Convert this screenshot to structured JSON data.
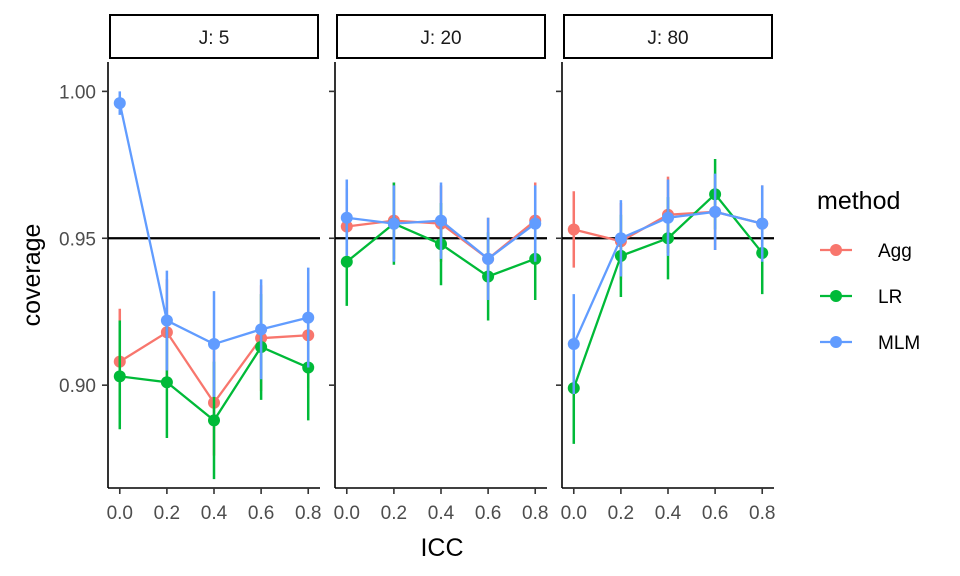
{
  "chart_data": {
    "type": "line",
    "xlabel": "ICC",
    "ylabel": "coverage",
    "ylim": [
      0.865,
      1.01
    ],
    "xlim": [
      -0.05,
      0.85
    ],
    "yticks": [
      0.9,
      0.95,
      1.0
    ],
    "ytick_labels": [
      "0.90",
      "0.95",
      "1.00"
    ],
    "xticks": [
      0.0,
      0.2,
      0.4,
      0.6,
      0.8
    ],
    "xtick_labels": [
      "0.0",
      "0.2",
      "0.4",
      "0.6",
      "0.8"
    ],
    "hline": 0.95,
    "legend": {
      "title": "method",
      "position": "right",
      "items": [
        {
          "label": "Agg",
          "color": "#F8766D"
        },
        {
          "label": "LR",
          "color": "#00BA38"
        },
        {
          "label": "MLM",
          "color": "#619CFF"
        }
      ]
    },
    "panels": [
      {
        "label": "J: 5",
        "series": [
          {
            "name": "Agg",
            "color": "#F8766D",
            "x": [
              0.0,
              0.2,
              0.4,
              0.6,
              0.8
            ],
            "y": [
              0.908,
              0.918,
              0.894,
              0.916,
              0.917
            ],
            "lo": [
              0.89,
              0.9,
              0.876,
              0.898,
              0.899
            ],
            "hi": [
              0.926,
              0.936,
              0.912,
              0.934,
              0.935
            ]
          },
          {
            "name": "LR",
            "color": "#00BA38",
            "x": [
              0.0,
              0.2,
              0.4,
              0.6,
              0.8
            ],
            "y": [
              0.903,
              0.901,
              0.888,
              0.913,
              0.906
            ],
            "lo": [
              0.885,
              0.882,
              0.868,
              0.895,
              0.888
            ],
            "hi": [
              0.922,
              0.92,
              0.908,
              0.931,
              0.924
            ]
          },
          {
            "name": "MLM",
            "color": "#619CFF",
            "x": [
              0.0,
              0.2,
              0.4,
              0.6,
              0.8
            ],
            "y": [
              0.996,
              0.922,
              0.914,
              0.919,
              0.923
            ],
            "lo": [
              0.992,
              0.905,
              0.896,
              0.902,
              0.906
            ],
            "hi": [
              1.0,
              0.939,
              0.932,
              0.936,
              0.94
            ]
          }
        ]
      },
      {
        "label": "J: 20",
        "series": [
          {
            "name": "Agg",
            "color": "#F8766D",
            "x": [
              0.0,
              0.2,
              0.4,
              0.6,
              0.8
            ],
            "y": [
              0.954,
              0.956,
              0.955,
              0.943,
              0.956
            ],
            "lo": [
              0.941,
              0.943,
              0.942,
              0.929,
              0.943
            ],
            "hi": [
              0.967,
              0.969,
              0.968,
              0.957,
              0.969
            ]
          },
          {
            "name": "LR",
            "color": "#00BA38",
            "x": [
              0.0,
              0.2,
              0.4,
              0.6,
              0.8
            ],
            "y": [
              0.942,
              0.955,
              0.948,
              0.937,
              0.943
            ],
            "lo": [
              0.927,
              0.941,
              0.934,
              0.922,
              0.929
            ],
            "hi": [
              0.957,
              0.969,
              0.962,
              0.952,
              0.957
            ]
          },
          {
            "name": "MLM",
            "color": "#619CFF",
            "x": [
              0.0,
              0.2,
              0.4,
              0.6,
              0.8
            ],
            "y": [
              0.957,
              0.955,
              0.956,
              0.943,
              0.955
            ],
            "lo": [
              0.944,
              0.942,
              0.943,
              0.929,
              0.942
            ],
            "hi": [
              0.97,
              0.968,
              0.969,
              0.957,
              0.968
            ]
          }
        ]
      },
      {
        "label": "J: 80",
        "series": [
          {
            "name": "Agg",
            "color": "#F8766D",
            "x": [
              0.0,
              0.2,
              0.4,
              0.6,
              0.8
            ],
            "y": [
              0.953,
              0.949,
              0.958,
              0.959,
              0.955
            ],
            "lo": [
              0.94,
              0.936,
              0.945,
              0.946,
              0.942
            ],
            "hi": [
              0.966,
              0.962,
              0.971,
              0.972,
              0.968
            ]
          },
          {
            "name": "LR",
            "color": "#00BA38",
            "x": [
              0.0,
              0.2,
              0.4,
              0.6,
              0.8
            ],
            "y": [
              0.899,
              0.944,
              0.95,
              0.965,
              0.945
            ],
            "lo": [
              0.88,
              0.93,
              0.936,
              0.953,
              0.931
            ],
            "hi": [
              0.918,
              0.958,
              0.964,
              0.977,
              0.959
            ]
          },
          {
            "name": "MLM",
            "color": "#619CFF",
            "x": [
              0.0,
              0.2,
              0.4,
              0.6,
              0.8
            ],
            "y": [
              0.914,
              0.95,
              0.957,
              0.959,
              0.955
            ],
            "lo": [
              0.897,
              0.937,
              0.944,
              0.946,
              0.942
            ],
            "hi": [
              0.931,
              0.963,
              0.97,
              0.972,
              0.968
            ]
          }
        ]
      }
    ]
  }
}
